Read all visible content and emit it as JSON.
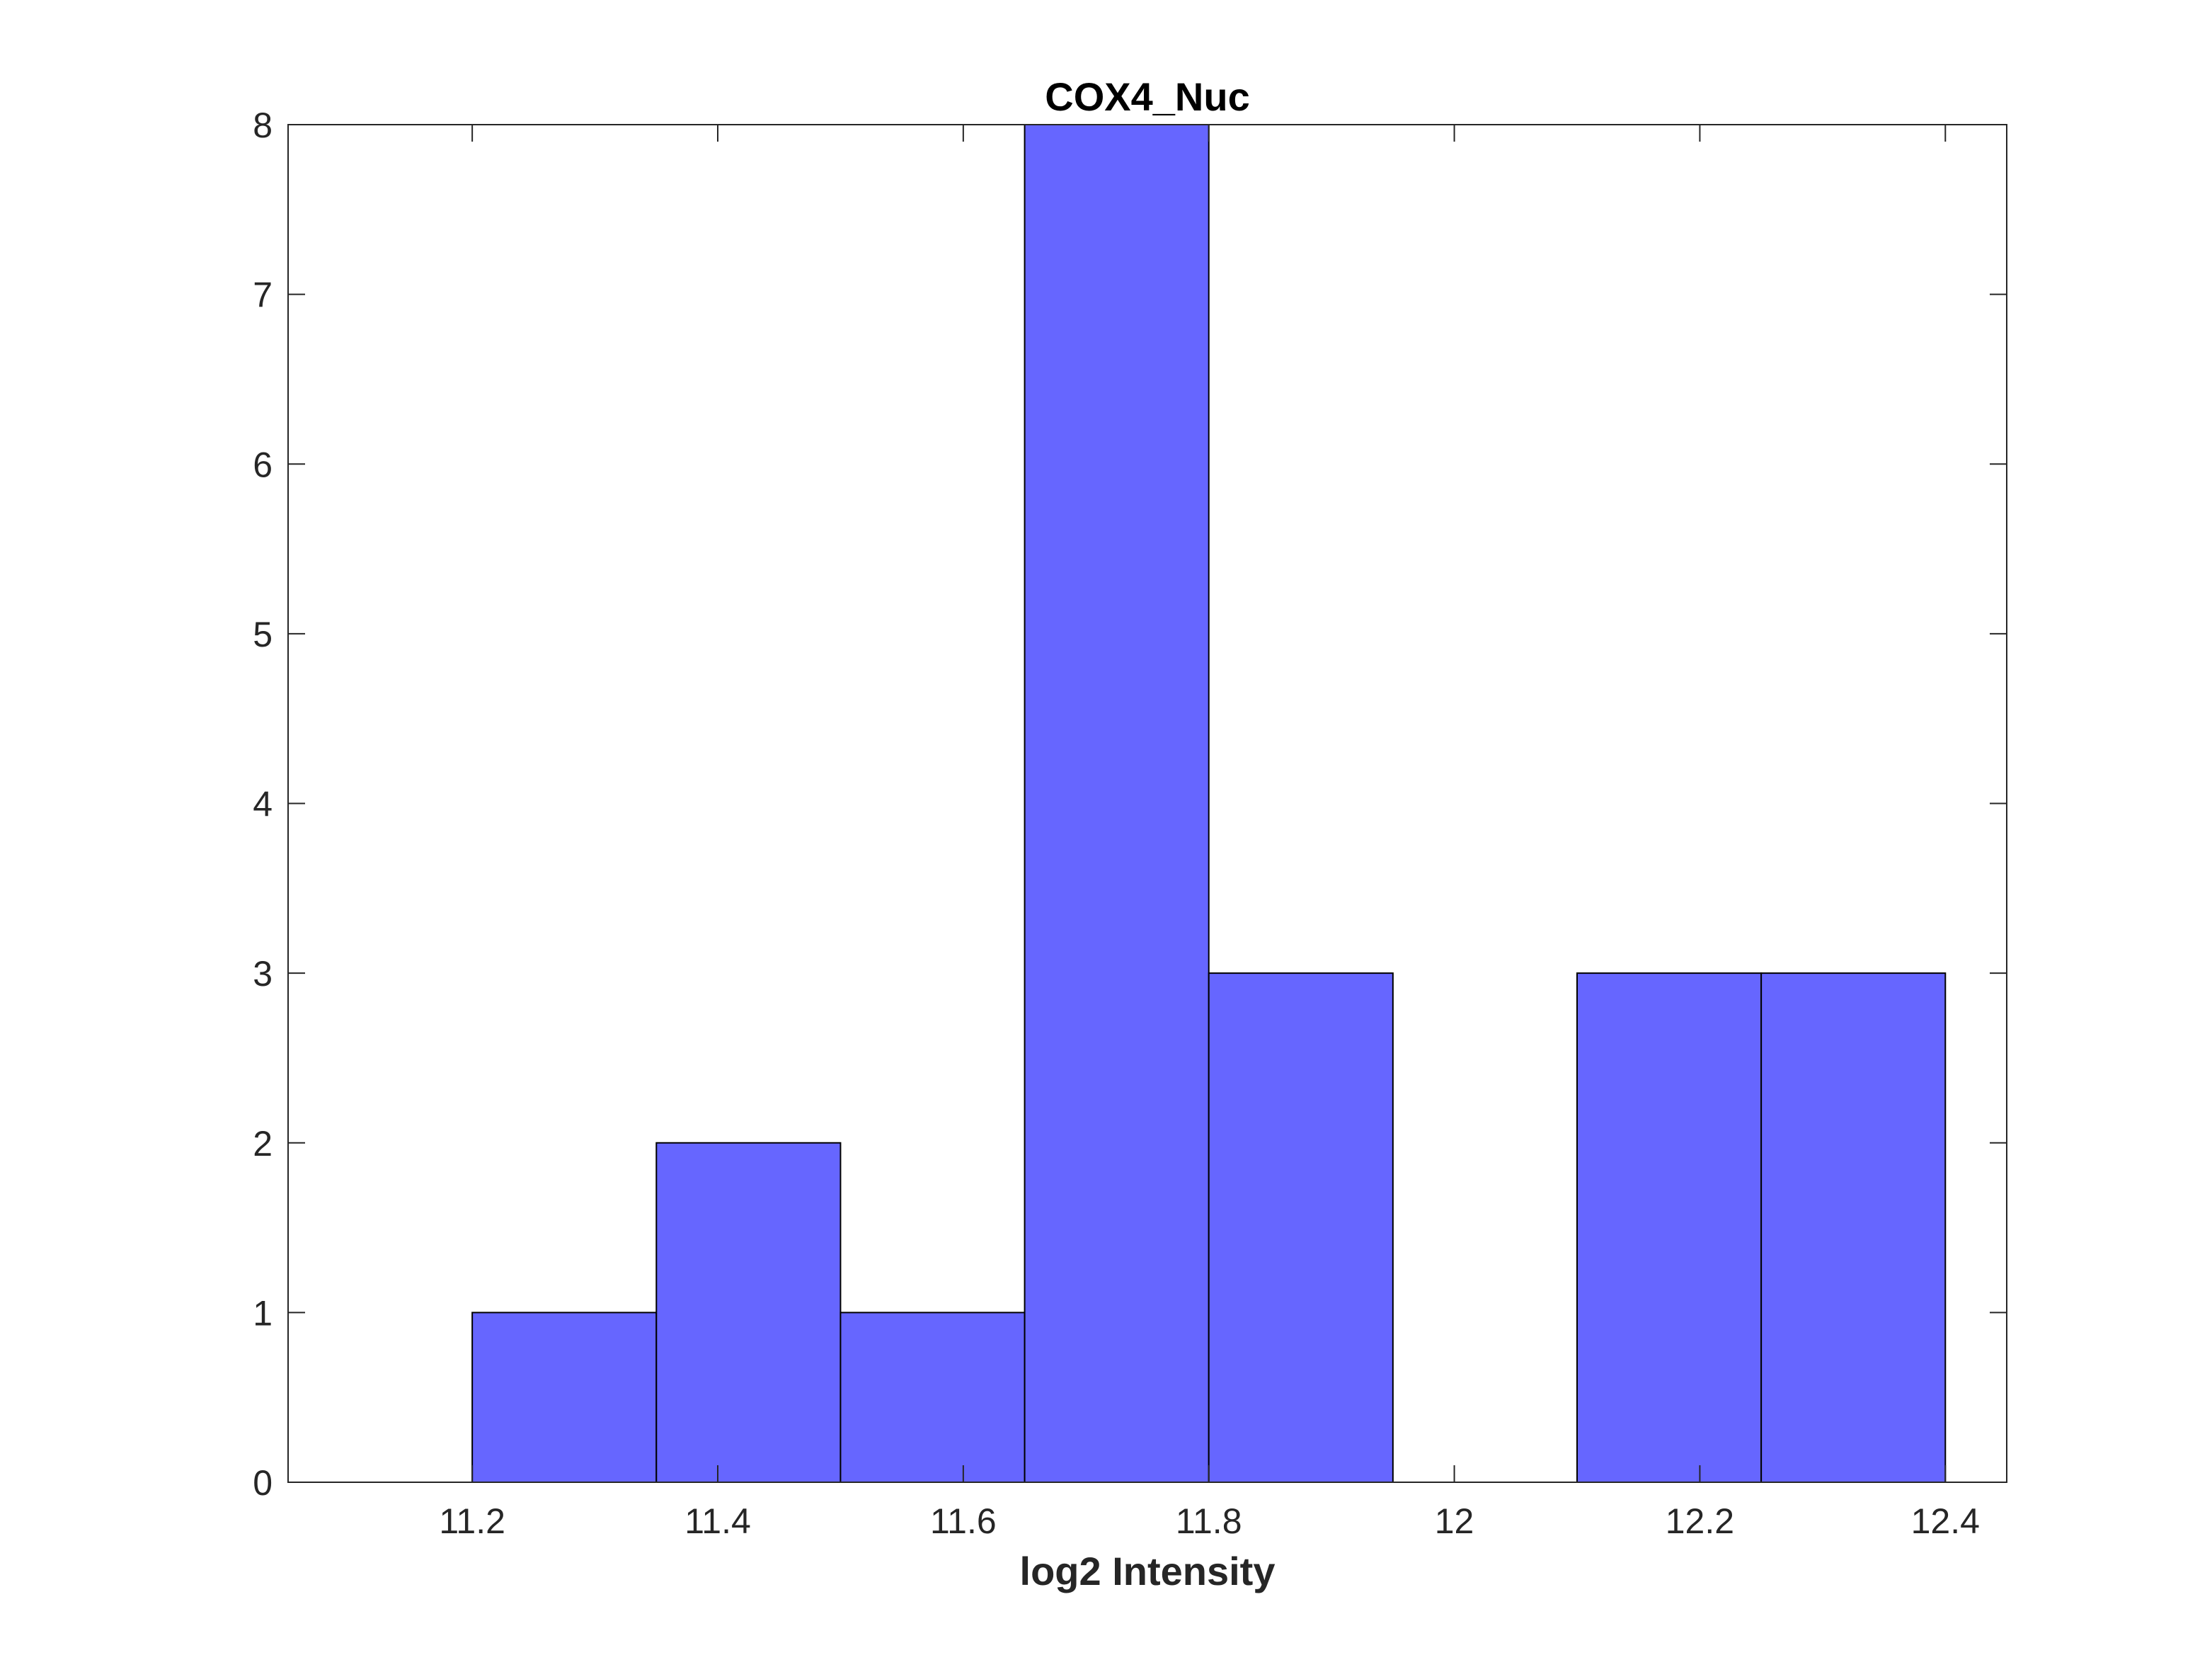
{
  "chart_data": {
    "type": "bar",
    "title": "COX4_Nuc",
    "xlabel": "log2 Intensity",
    "ylabel": "",
    "xlim": [
      11.05,
      12.45
    ],
    "ylim": [
      0,
      8
    ],
    "bin_edges": [
      11.2,
      11.35,
      11.5,
      11.65,
      11.8,
      11.95,
      12.1,
      12.25,
      12.4
    ],
    "values": [
      1,
      2,
      1,
      8,
      3,
      0,
      3,
      3
    ],
    "x_ticks": [
      11.2,
      11.4,
      11.6,
      11.8,
      12,
      12.2,
      12.4
    ],
    "x_tick_labels": [
      "11.2",
      "11.4",
      "11.6",
      "11.8",
      "12",
      "12.2",
      "12.4"
    ],
    "y_ticks": [
      0,
      1,
      2,
      3,
      4,
      5,
      6,
      7,
      8
    ],
    "y_tick_labels": [
      "0",
      "1",
      "2",
      "3",
      "4",
      "5",
      "6",
      "7",
      "8"
    ],
    "grid": false,
    "colors": {
      "bar_fill": "#6666ff",
      "bar_edge": "#000000",
      "axis": "#262626"
    }
  }
}
